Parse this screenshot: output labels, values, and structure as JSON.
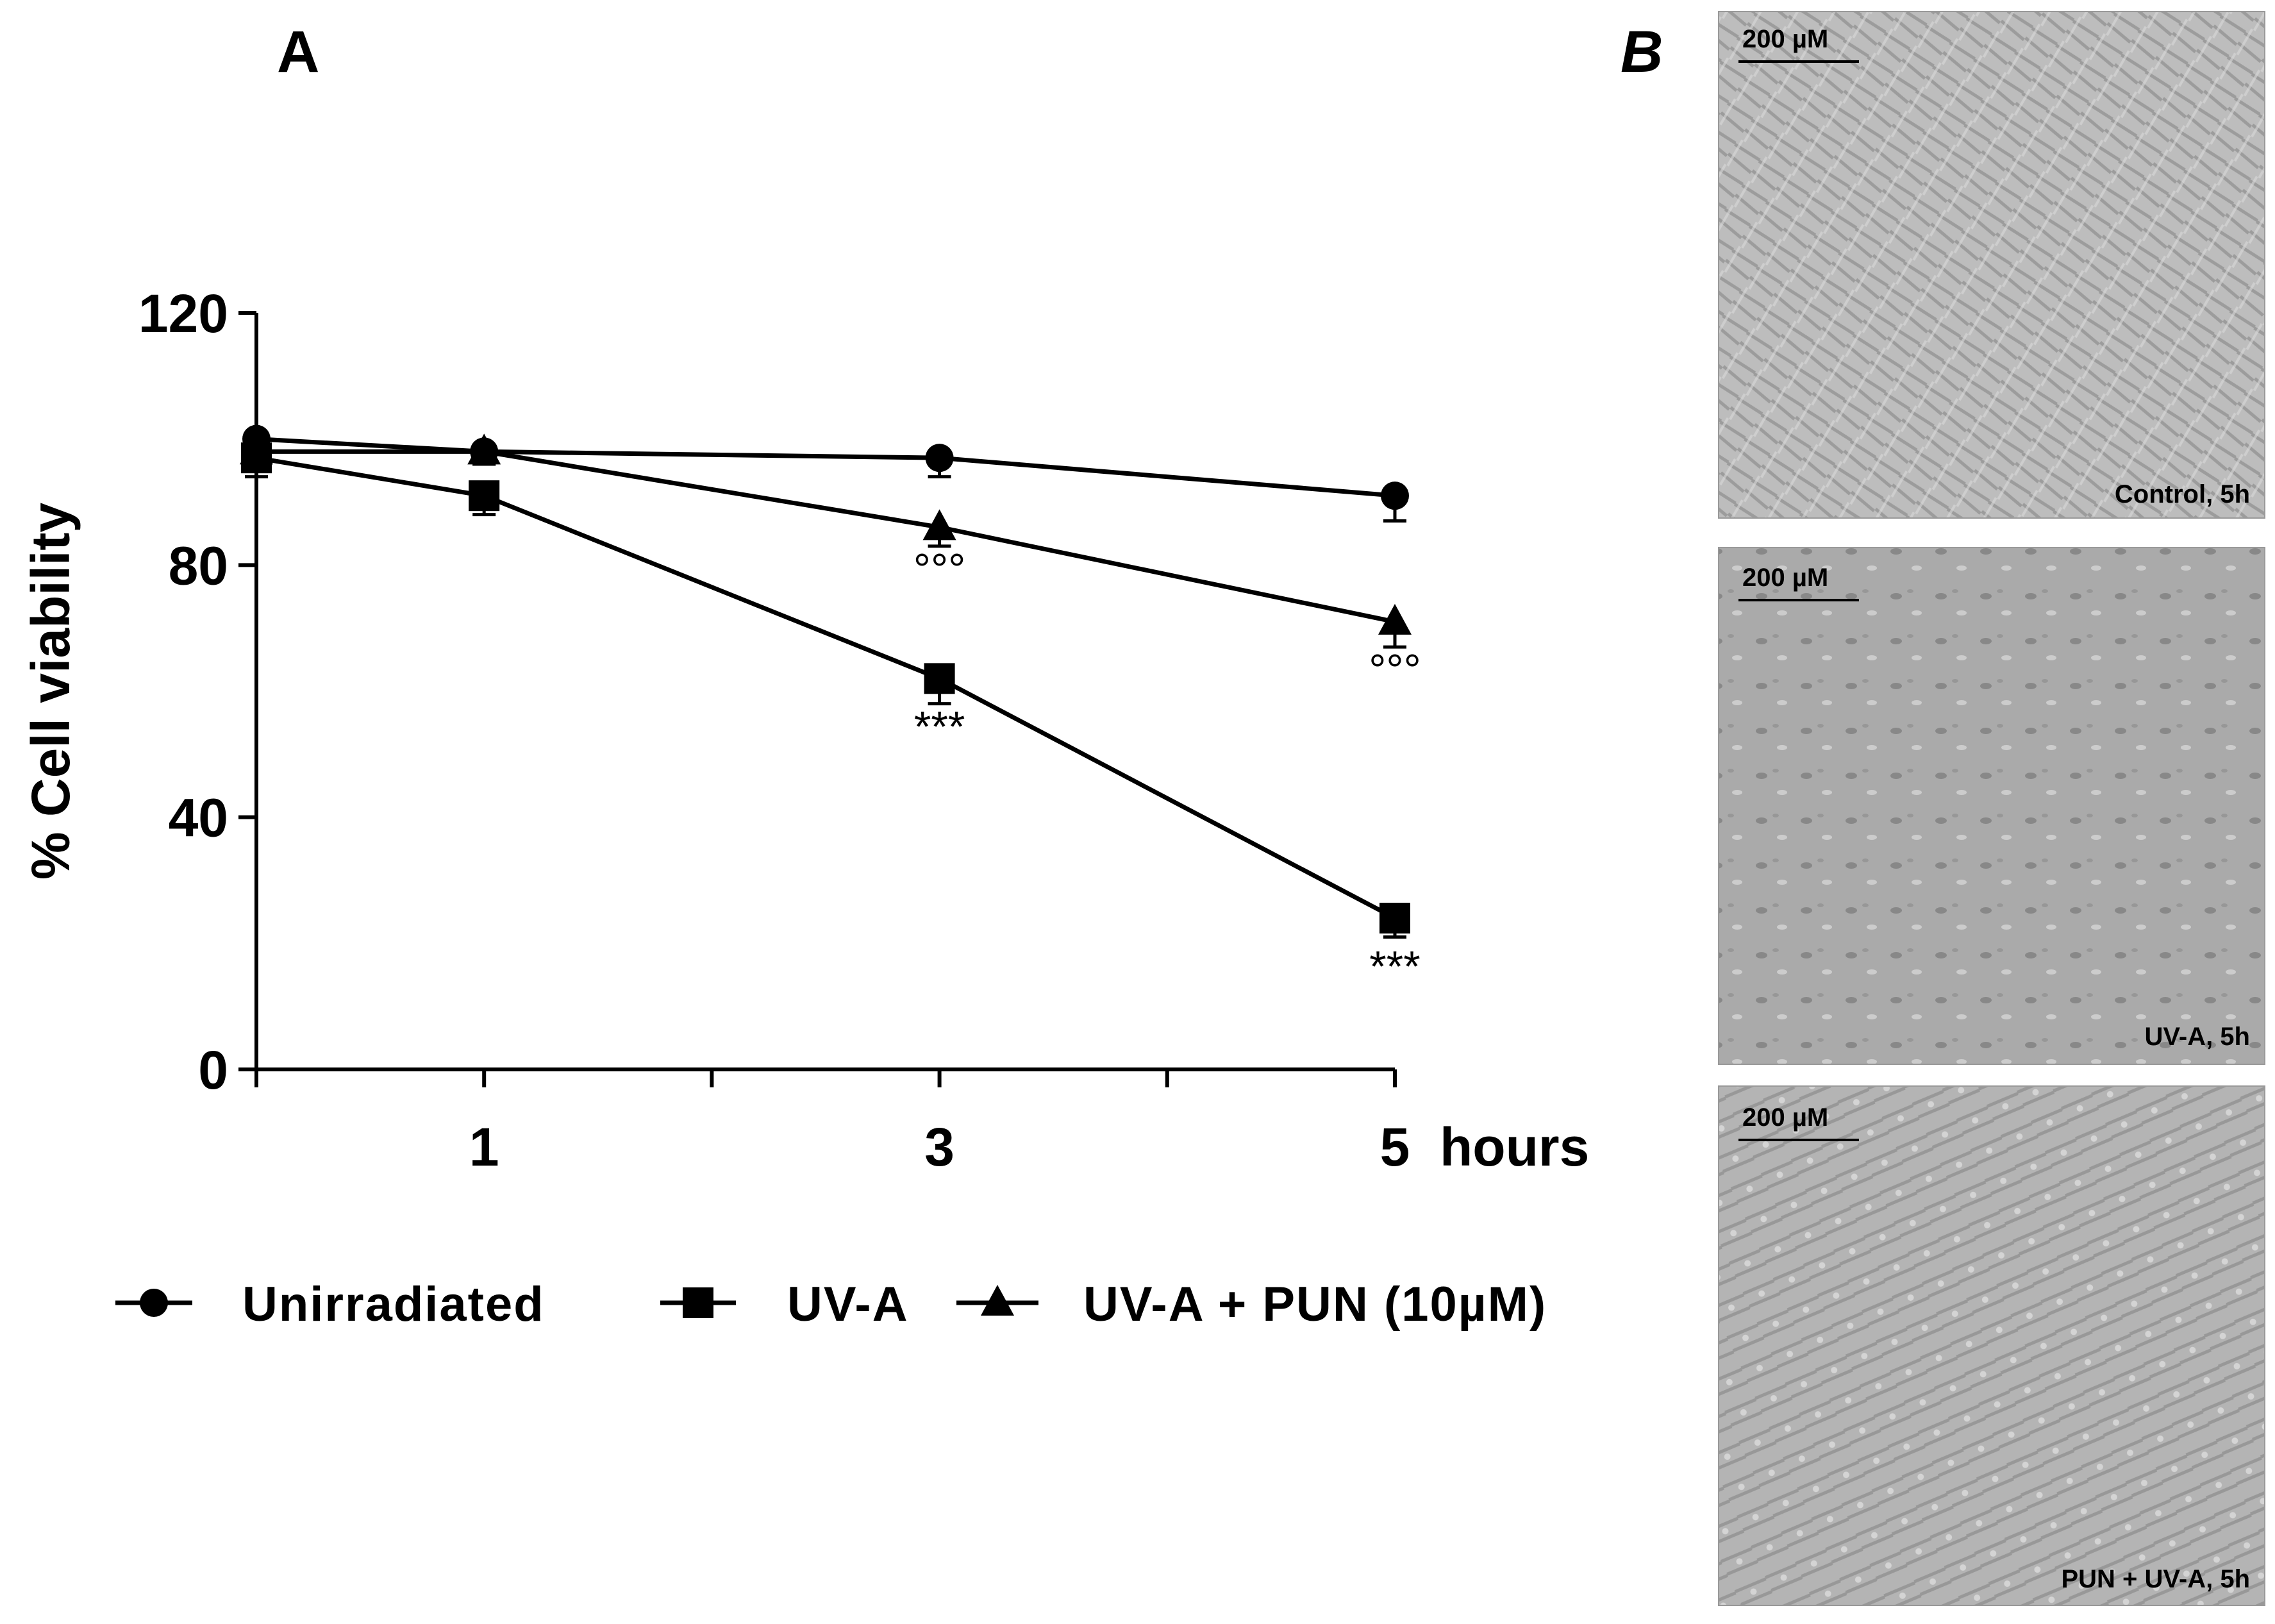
{
  "panels": {
    "a_label": "A",
    "b_label": "B"
  },
  "chart_data": {
    "type": "line",
    "title": "",
    "ylabel": "% Cell viability",
    "xlabel": "",
    "x_unit_label": "hours",
    "xlim": [
      0,
      5
    ],
    "ylim": [
      0,
      120
    ],
    "xticks": [
      1,
      3,
      5
    ],
    "xminor": [
      0,
      2,
      4
    ],
    "yticks": [
      0,
      40,
      80,
      120
    ],
    "grid": false,
    "legend_position": "bottom",
    "series": [
      {
        "name": "Unirradiated",
        "marker": "circle",
        "x": [
          0,
          1,
          3,
          5
        ],
        "y": [
          100,
          98,
          97,
          91
        ],
        "err": [
          3,
          2,
          3,
          4
        ]
      },
      {
        "name": "UV-A",
        "marker": "square",
        "x": [
          0,
          1,
          3,
          5
        ],
        "y": [
          97,
          91,
          62,
          24
        ],
        "err": [
          3,
          3,
          4,
          3
        ]
      },
      {
        "name": "UV-A + PUN (10µM)",
        "marker": "triangle",
        "x": [
          0,
          1,
          3,
          5
        ],
        "y": [
          98,
          98,
          86,
          71
        ],
        "err": [
          3,
          2,
          3,
          4
        ]
      }
    ],
    "annotations": [
      {
        "text": "°°°",
        "x": 3,
        "y": 77
      },
      {
        "text": "***",
        "x": 3,
        "y": 52
      },
      {
        "text": "°°°",
        "x": 5,
        "y": 61
      },
      {
        "text": "***",
        "x": 5,
        "y": 14
      }
    ]
  },
  "micrographs": [
    {
      "scale_label": "200 µM",
      "caption": "Control, 5h",
      "tone": "#b8b8b8"
    },
    {
      "scale_label": "200 µM",
      "caption": "UV-A, 5h",
      "tone": "#a8a8a8"
    },
    {
      "scale_label": "200 µM",
      "caption": "PUN + UV-A, 5h",
      "tone": "#b0b0b0"
    }
  ]
}
